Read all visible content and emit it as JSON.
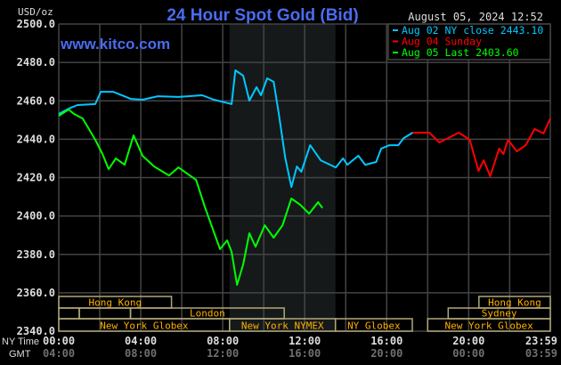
{
  "chart_data": {
    "type": "line",
    "title": "24 Hour Spot Gold (Bid)",
    "watermark": "www.kitco.com",
    "timestamp": "August 05, 2024 12:52",
    "ylabel": "USD/oz",
    "ylim": [
      2340,
      2500
    ],
    "yticks": [
      "2500.0",
      "2480.0",
      "2460.0",
      "2440.0",
      "2420.0",
      "2400.0",
      "2380.0",
      "2360.0",
      "2340.0"
    ],
    "x_range_ny": [
      "00:00",
      "23:59"
    ],
    "xaxis_ny_label": "NY Time",
    "xaxis_gmt_label": "GMT",
    "xticks_ny": [
      "00:00",
      "04:00",
      "08:00",
      "12:00",
      "16:00",
      "20:00",
      "23:59"
    ],
    "xticks_gmt": [
      "04:00",
      "08:00",
      "12:00",
      "16:00",
      "20:00",
      "00:00",
      "03:59"
    ],
    "grid": true,
    "legend_placement": "top-right",
    "highlight_period": {
      "start": "08:20",
      "end": "13:30",
      "color": "#15191a"
    },
    "series": [
      {
        "name": "Aug 02 NY close 2443.10",
        "color": "#00c8ff",
        "points": [
          [
            "00:00",
            2453.2
          ],
          [
            "00:29",
            2455.9
          ],
          [
            "00:55",
            2457.8
          ],
          [
            "01:47",
            2458.3
          ],
          [
            "02:03",
            2464.7
          ],
          [
            "02:39",
            2464.7
          ],
          [
            "03:31",
            2461.0
          ],
          [
            "04:05",
            2460.6
          ],
          [
            "04:50",
            2462.4
          ],
          [
            "05:50",
            2462.0
          ],
          [
            "07:00",
            2462.9
          ],
          [
            "07:34",
            2460.6
          ],
          [
            "08:26",
            2458.3
          ],
          [
            "08:37",
            2475.9
          ],
          [
            "09:00",
            2473.1
          ],
          [
            "09:18",
            2460.1
          ],
          [
            "09:39",
            2467.1
          ],
          [
            "09:52",
            2462.9
          ],
          [
            "10:10",
            2471.7
          ],
          [
            "10:29",
            2469.9
          ],
          [
            "10:44",
            2453.6
          ],
          [
            "11:03",
            2430.4
          ],
          [
            "11:21",
            2415.1
          ],
          [
            "11:37",
            2425.8
          ],
          [
            "11:50",
            2423.0
          ],
          [
            "12:16",
            2436.9
          ],
          [
            "12:47",
            2429.0
          ],
          [
            "13:31",
            2425.3
          ],
          [
            "13:52",
            2430.0
          ],
          [
            "14:05",
            2426.7
          ],
          [
            "14:37",
            2431.4
          ],
          [
            "14:57",
            2426.7
          ],
          [
            "15:29",
            2428.1
          ],
          [
            "15:44",
            2435.1
          ],
          [
            "16:08",
            2436.9
          ],
          [
            "16:34",
            2436.9
          ],
          [
            "16:50",
            2440.6
          ],
          [
            "17:16",
            2443.4
          ]
        ]
      },
      {
        "name": "Aug 04 Sunday",
        "color": "#ff0000",
        "points": [
          [
            "17:16",
            2443.4
          ],
          [
            "18:05",
            2443.4
          ],
          [
            "18:34",
            2438.3
          ],
          [
            "19:00",
            2440.6
          ],
          [
            "19:31",
            2443.4
          ],
          [
            "20:03",
            2439.7
          ],
          [
            "20:29",
            2423.5
          ],
          [
            "20:44",
            2429.0
          ],
          [
            "21:03",
            2420.7
          ],
          [
            "21:29",
            2435.1
          ],
          [
            "21:42",
            2432.3
          ],
          [
            "21:55",
            2439.7
          ],
          [
            "22:21",
            2433.7
          ],
          [
            "22:47",
            2436.9
          ],
          [
            "23:13",
            2445.3
          ],
          [
            "23:39",
            2443.0
          ],
          [
            "23:59",
            2450.8
          ]
        ]
      },
      {
        "name": "Aug 05 Last 2403.60",
        "color": "#00ff00",
        "points": [
          [
            "00:00",
            2452.2
          ],
          [
            "00:29",
            2455.5
          ],
          [
            "00:44",
            2453.2
          ],
          [
            "01:10",
            2450.8
          ],
          [
            "01:47",
            2439.7
          ],
          [
            "02:08",
            2432.3
          ],
          [
            "02:26",
            2424.4
          ],
          [
            "02:47",
            2430.0
          ],
          [
            "03:13",
            2426.7
          ],
          [
            "03:39",
            2442.0
          ],
          [
            "04:05",
            2431.4
          ],
          [
            "04:39",
            2425.8
          ],
          [
            "05:23",
            2421.1
          ],
          [
            "05:50",
            2425.3
          ],
          [
            "06:42",
            2418.8
          ],
          [
            "07:08",
            2404.5
          ],
          [
            "07:52",
            2382.7
          ],
          [
            "08:13",
            2387.3
          ],
          [
            "08:26",
            2381.3
          ],
          [
            "08:42",
            2364.1
          ],
          [
            "09:00",
            2374.8
          ],
          [
            "09:18",
            2391.0
          ],
          [
            "09:36",
            2384.0
          ],
          [
            "10:03",
            2395.2
          ],
          [
            "10:29",
            2388.7
          ],
          [
            "10:55",
            2395.2
          ],
          [
            "11:21",
            2409.1
          ],
          [
            "11:47",
            2405.8
          ],
          [
            "12:13",
            2401.2
          ],
          [
            "12:39",
            2407.2
          ],
          [
            "12:52",
            2404.2
          ]
        ]
      }
    ],
    "sessions": [
      {
        "label": "Hong Kong",
        "row": 0,
        "start": "00:00",
        "end": "05:30"
      },
      {
        "label": "Hong Kong",
        "row": 0,
        "start": "20:30",
        "end": "23:59"
      },
      {
        "label": "",
        "row": 1,
        "start": "00:00",
        "end": "01:00"
      },
      {
        "label": "",
        "row": 1,
        "start": "01:00",
        "end": "03:30"
      },
      {
        "label": "London",
        "row": 1,
        "start": "03:30",
        "end": "11:00"
      },
      {
        "label": "Sydney",
        "row": 1,
        "start": "19:00",
        "end": "23:59"
      },
      {
        "label": "New York Globex",
        "row": 2,
        "start": "00:00",
        "end": "08:20"
      },
      {
        "label": "New York NYMEX",
        "row": 2,
        "start": "08:20",
        "end": "13:30"
      },
      {
        "label": "NY Globex",
        "row": 2,
        "start": "13:30",
        "end": "17:15"
      },
      {
        "label": "New York Globex",
        "row": 2,
        "start": "18:00",
        "end": "23:59"
      }
    ]
  },
  "colors": {
    "title": "#4a6cf0",
    "axis_text": "#dddddd",
    "gmt_text": "#707070",
    "grid": "#444444",
    "session_border": "#b0a878",
    "session_text": "#ffb000"
  }
}
